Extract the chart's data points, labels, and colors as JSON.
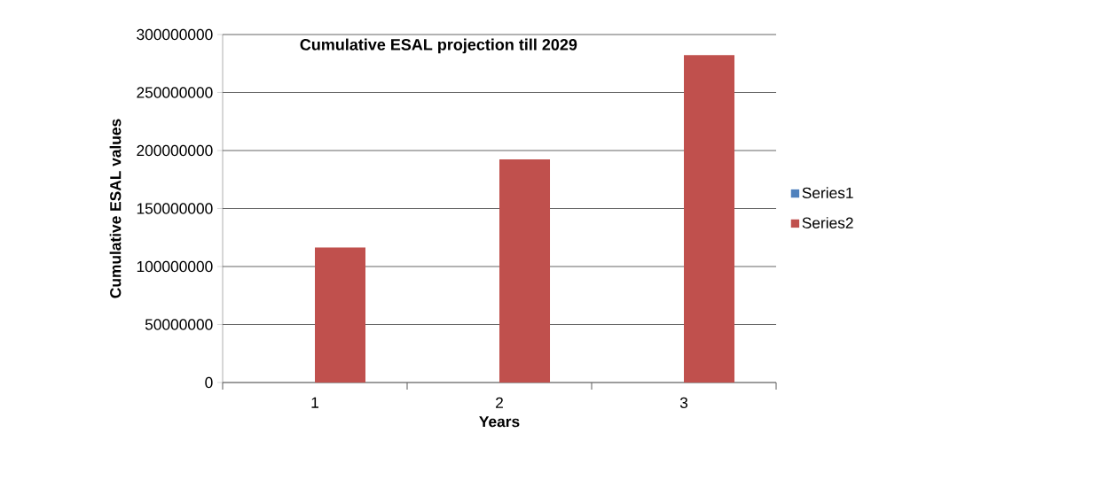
{
  "chart_data": {
    "type": "bar",
    "title": "Cumulative ESAL projection till 2029",
    "xlabel": "Years",
    "ylabel": "Cumulative ESAL values",
    "categories": [
      "1",
      "2",
      "3"
    ],
    "series": [
      {
        "name": "Series1",
        "color": "#4f81bd",
        "values": [
          0,
          0,
          0
        ]
      },
      {
        "name": "Series2",
        "color": "#c0504d",
        "values": [
          116500000,
          192300000,
          282300000
        ]
      }
    ],
    "ylim": [
      0,
      300000000
    ],
    "yticks": [
      0,
      50000000,
      100000000,
      150000000,
      200000000,
      250000000,
      300000000
    ],
    "grid": "y",
    "legend": "right"
  }
}
